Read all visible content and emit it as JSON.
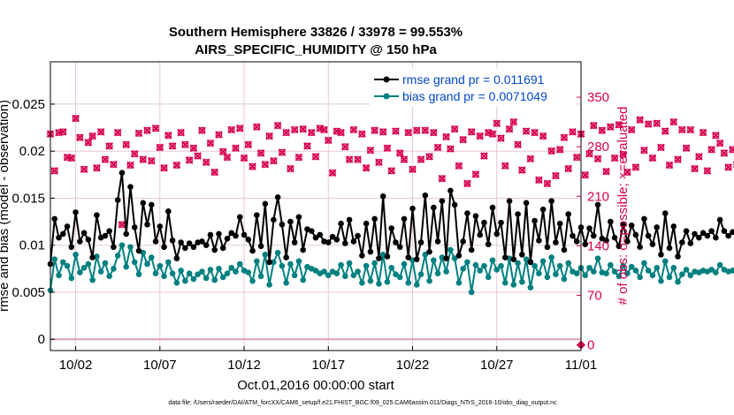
{
  "colors": {
    "rmse": "#000000",
    "bias": "#008080",
    "obs": "#d6004f",
    "legend_text": "#0047c8",
    "grid": "#e8c8d4",
    "zero_line": "#d8a0b8"
  },
  "chart_data": {
    "type": "line",
    "title": "Southern Hemisphere 33826 / 33978 = 99.553%",
    "subtitle": "AIRS_SPECIFIC_HUMIDITY @ 150 hPa",
    "xlabel": "Oct.01,2016 00:00:00 start",
    "ylabel": "rmse and bias (model - observation)",
    "y2label": "# of obs: o=possible; ×=evaluated",
    "footer": "data file: /Users/raeder/DAI/ATM_forcXX/CAM6_setup/f.e21.FHIST_BGC.f09_025.CAM6assim.011/Diags_NTrS_2016-10/obs_diag_output.nc",
    "x_tick_labels": [
      "10/02",
      "10/07",
      "10/12",
      "10/17",
      "10/22",
      "10/27",
      "11/01"
    ],
    "x_tick_values": [
      2,
      7,
      12,
      17,
      22,
      27,
      32
    ],
    "xlim": [
      0.5,
      32
    ],
    "ylim": [
      -0.0012,
      0.0295
    ],
    "y_tick_labels": [
      "0",
      "0.005",
      "0.01",
      "0.015",
      "0.02",
      "0.025"
    ],
    "y_tick_values": [
      0,
      0.005,
      0.01,
      0.015,
      0.02,
      0.025
    ],
    "y2lim": [
      -8,
      400
    ],
    "y2_tick_labels": [
      "0",
      "70",
      "140",
      "210",
      "280",
      "350"
    ],
    "y2_tick_values": [
      0,
      70,
      140,
      210,
      280,
      350
    ],
    "grid": true,
    "legend_position": "top-right",
    "x_start": 0.5,
    "x_step": 0.25,
    "series": [
      {
        "name": "rmse grand pr = 0.011691",
        "values": [
          0.008,
          0.0128,
          0.0108,
          0.0112,
          0.012,
          0.0098,
          0.0135,
          0.0104,
          0.0113,
          0.0106,
          0.0087,
          0.0132,
          0.0108,
          0.011,
          0.0115,
          0.0098,
          0.0148,
          0.0177,
          0.0112,
          0.0162,
          0.0119,
          0.0094,
          0.0145,
          0.0122,
          0.0143,
          0.0104,
          0.012,
          0.0098,
          0.0136,
          0.0105,
          0.0086,
          0.0103,
          0.0097,
          0.0102,
          0.0098,
          0.0103,
          0.0104,
          0.01,
          0.0111,
          0.0095,
          0.0112,
          0.0097,
          0.0107,
          0.0113,
          0.011,
          0.013,
          0.0111,
          0.0106,
          0.0094,
          0.0132,
          0.0099,
          0.0144,
          0.0082,
          0.0127,
          0.0151,
          0.0122,
          0.0087,
          0.0125,
          0.0103,
          0.013,
          0.0095,
          0.0117,
          0.0115,
          0.0108,
          0.0111,
          0.0104,
          0.0103,
          0.0109,
          0.0106,
          0.0123,
          0.0102,
          0.0127,
          0.0104,
          0.011,
          0.0089,
          0.0123,
          0.0093,
          0.0128,
          0.0086,
          0.0152,
          0.0088,
          0.0118,
          0.0103,
          0.0098,
          0.0128,
          0.0087,
          0.0139,
          0.0085,
          0.0103,
          0.0153,
          0.0093,
          0.014,
          0.0104,
          0.0147,
          0.0086,
          0.0158,
          0.0143,
          0.0089,
          0.0104,
          0.0134,
          0.0095,
          0.0131,
          0.0111,
          0.0124,
          0.0101,
          0.014,
          0.0112,
          0.0124,
          0.0087,
          0.0147,
          0.0085,
          0.0133,
          0.009,
          0.0145,
          0.0082,
          0.0126,
          0.0105,
          0.0138,
          0.0098,
          0.0147,
          0.0103,
          0.0123,
          0.0095,
          0.0133,
          0.011,
          0.0104,
          0.0119,
          0.0101,
          0.0118,
          0.011,
          0.0143,
          0.0107,
          0.0105,
          0.0125,
          0.0108,
          0.0099,
          0.0122,
          0.0104,
          0.0121,
          0.0111,
          0.0098,
          0.0128,
          0.011,
          0.0101,
          0.0119,
          0.009,
          0.0134,
          0.0097,
          0.012,
          0.0088,
          0.0103,
          0.0115,
          0.0102,
          0.0112,
          0.0108,
          0.0113,
          0.011,
          0.0115,
          0.0108,
          0.0127,
          0.0115,
          0.011,
          0.0114,
          0.0113,
          0.0116
        ]
      },
      {
        "name": "bias grand pr = 0.0071049",
        "values": [
          0.0052,
          0.0085,
          0.0068,
          0.0082,
          0.0078,
          0.0065,
          0.009,
          0.0071,
          0.0076,
          0.008,
          0.0063,
          0.0088,
          0.0072,
          0.0081,
          0.0067,
          0.0075,
          0.0089,
          0.01,
          0.0077,
          0.0098,
          0.0082,
          0.0069,
          0.0092,
          0.008,
          0.0087,
          0.007,
          0.0078,
          0.0067,
          0.0082,
          0.007,
          0.006,
          0.0073,
          0.0062,
          0.007,
          0.0064,
          0.0069,
          0.0072,
          0.0065,
          0.0074,
          0.0063,
          0.0075,
          0.0066,
          0.007,
          0.0076,
          0.0072,
          0.008,
          0.0073,
          0.0071,
          0.0062,
          0.0083,
          0.0067,
          0.009,
          0.0058,
          0.0082,
          0.0092,
          0.0078,
          0.006,
          0.008,
          0.0068,
          0.0083,
          0.0063,
          0.0077,
          0.0075,
          0.0073,
          0.007,
          0.0072,
          0.0068,
          0.0072,
          0.007,
          0.0079,
          0.0067,
          0.0081,
          0.0068,
          0.0072,
          0.006,
          0.0078,
          0.0062,
          0.0081,
          0.0059,
          0.009,
          0.0061,
          0.0076,
          0.0069,
          0.0066,
          0.008,
          0.006,
          0.0084,
          0.0058,
          0.0069,
          0.009,
          0.0062,
          0.0084,
          0.007,
          0.0087,
          0.0072,
          0.0095,
          0.0086,
          0.006,
          0.0075,
          0.0082,
          0.005,
          0.0079,
          0.0073,
          0.0078,
          0.0066,
          0.0084,
          0.0074,
          0.0078,
          0.006,
          0.0086,
          0.0058,
          0.0081,
          0.0061,
          0.0085,
          0.0055,
          0.0078,
          0.007,
          0.0083,
          0.0066,
          0.0087,
          0.0069,
          0.0078,
          0.0064,
          0.0081,
          0.0072,
          0.007,
          0.0076,
          0.0068,
          0.0076,
          0.0072,
          0.0086,
          0.0071,
          0.007,
          0.0079,
          0.0072,
          0.0067,
          0.0078,
          0.007,
          0.0077,
          0.0073,
          0.0066,
          0.0081,
          0.0073,
          0.0068,
          0.0076,
          0.0062,
          0.0083,
          0.0066,
          0.0076,
          0.0061,
          0.0069,
          0.0074,
          0.0068,
          0.0072,
          0.0071,
          0.0073,
          0.0072,
          0.0074,
          0.0071,
          0.0079,
          0.0074,
          0.0072,
          0.0073,
          0.0073,
          0.0074
        ]
      },
      {
        "name": "obs possible",
        "values": [
          298,
          246,
          300,
          301,
          265,
          264,
          320,
          293,
          248,
          286,
          295,
          250,
          301,
          262,
          281,
          255,
          300,
          170,
          283,
          254,
          270,
          299,
          262,
          303,
          260,
          306,
          279,
          250,
          296,
          281,
          254,
          300,
          283,
          261,
          278,
          267,
          303,
          258,
          285,
          244,
          297,
          273,
          265,
          304,
          278,
          306,
          264,
          283,
          252,
          308,
          271,
          255,
          295,
          260,
          310,
          272,
          300,
          249,
          304,
          265,
          305,
          281,
          300,
          266,
          306,
          304,
          289,
          243,
          302,
          300,
          280,
          262,
          304,
          262,
          298,
          250,
          275,
          303,
          258,
          301,
          278,
          246,
          302,
          271,
          262,
          300,
          248,
          303,
          262,
          303,
          266,
          300,
          279,
          235,
          294,
          277,
          305,
          253,
          290,
          228,
          301,
          241,
          295,
          267,
          300,
          298,
          313,
          292,
          253,
          305,
          315,
          283,
          247,
          302,
          263,
          300,
          233,
          295,
          228,
          274,
          239,
          276,
          293,
          249,
          301,
          265,
          298,
          240,
          270,
          310,
          263,
          303,
          245,
          308,
          264,
          311,
          269,
          244,
          304,
          251,
          318,
          275,
          312,
          264,
          313,
          279,
          302,
          254,
          315,
          262,
          304,
          278,
          304,
          249,
          266,
          300,
          246,
          276,
          296,
          285,
          271,
          251,
          276,
          255,
          298,
          243,
          265,
          270,
          274,
          283
        ]
      },
      {
        "name": "obs evaluated",
        "values": [
          298,
          246,
          300,
          301,
          265,
          264,
          320,
          293,
          248,
          286,
          295,
          250,
          301,
          262,
          281,
          255,
          300,
          170,
          283,
          254,
          270,
          299,
          262,
          303,
          260,
          306,
          279,
          250,
          296,
          281,
          254,
          300,
          283,
          261,
          278,
          267,
          303,
          258,
          285,
          244,
          297,
          273,
          265,
          304,
          278,
          306,
          264,
          283,
          252,
          308,
          271,
          255,
          295,
          260,
          310,
          272,
          300,
          249,
          304,
          265,
          305,
          281,
          300,
          266,
          306,
          304,
          289,
          243,
          302,
          300,
          280,
          262,
          304,
          262,
          298,
          250,
          275,
          303,
          258,
          301,
          278,
          246,
          302,
          271,
          262,
          300,
          248,
          303,
          262,
          303,
          266,
          300,
          279,
          235,
          294,
          277,
          305,
          253,
          290,
          228,
          301,
          241,
          295,
          267,
          300,
          298,
          313,
          292,
          253,
          305,
          315,
          283,
          247,
          302,
          263,
          300,
          233,
          295,
          228,
          274,
          239,
          276,
          293,
          249,
          301,
          265,
          298,
          240,
          270,
          310,
          263,
          303,
          245,
          308,
          264,
          311,
          269,
          244,
          304,
          251,
          318,
          275,
          312,
          264,
          313,
          279,
          302,
          254,
          315,
          262,
          304,
          278,
          304,
          249,
          266,
          300,
          246,
          276,
          296,
          285,
          271,
          251,
          276,
          255,
          298,
          243,
          265,
          270,
          274,
          283
        ]
      }
    ],
    "obs_end_marker": {
      "x": 32,
      "value": 0
    }
  }
}
